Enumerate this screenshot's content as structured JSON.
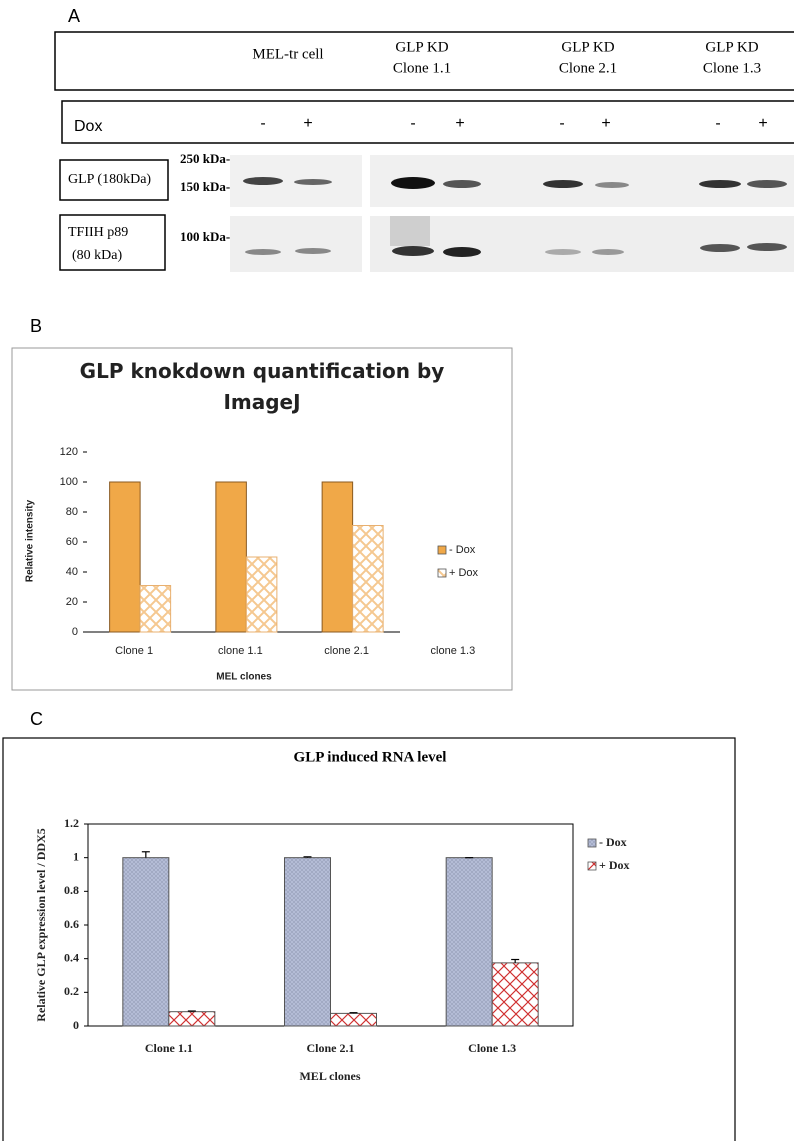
{
  "panel_labels": [
    "A",
    "B",
    "C"
  ],
  "blot": {
    "columns": [
      [
        "MEL-tr cell"
      ],
      [
        "GLP KD",
        "Clone 1.1"
      ],
      [
        "GLP KD",
        "Clone 2.1"
      ],
      [
        "GLP KD",
        "Clone 1.3"
      ]
    ],
    "dox_label": "Dox",
    "dox_states": [
      "-",
      "+",
      "-",
      "+",
      "-",
      "+",
      "-",
      "+"
    ],
    "rows": [
      [
        "GLP (180kDa)"
      ],
      [
        "TFIIH p89",
        "(80 kDa)"
      ]
    ],
    "markers": [
      "250 kDa-",
      "150 kDa-",
      "100 kDa-"
    ]
  },
  "chart_data": [
    {
      "type": "bar",
      "title": "GLP knokdown quantification by ImageJ",
      "x_label": "MEL clones",
      "y_label": "Relative intensity",
      "categories": [
        "Clone 1",
        "clone 1.1",
        "clone 2.1",
        "clone 1.3"
      ],
      "series": [
        {
          "name": "- Dox",
          "color": "#f0a848",
          "fill": "solid",
          "values": [
            100,
            100,
            100,
            null
          ]
        },
        {
          "name": "+ Dox",
          "color": "#f5c890",
          "fill": "hatch",
          "values": [
            31,
            50,
            71,
            null
          ]
        }
      ],
      "ylim": [
        0,
        120
      ],
      "yticks": [
        0,
        20,
        40,
        60,
        80,
        100,
        120
      ],
      "legend": "right"
    },
    {
      "type": "bar",
      "title": "GLP induced RNA level",
      "x_label": "MEL clones",
      "y_label": "Relative GLP expression level / DDX5",
      "categories": [
        "Clone 1.1",
        "Clone 2.1",
        "Clone 1.3"
      ],
      "series": [
        {
          "name": "- Dox",
          "color": "#b4bcd6",
          "fill": "dots",
          "values": [
            1,
            1,
            1
          ],
          "errors": [
            0.035,
            0.005,
            0
          ]
        },
        {
          "name": "+ Dox",
          "color": "#d03030",
          "fill": "brick",
          "values": [
            0.085,
            0.075,
            0.375
          ],
          "errors": [
            0.004,
            0.004,
            0.02
          ]
        }
      ],
      "ylim": [
        0,
        1.2
      ],
      "yticks": [
        0,
        0.2,
        0.4,
        0.6,
        0.8,
        1,
        1.2
      ],
      "legend": "right"
    }
  ]
}
